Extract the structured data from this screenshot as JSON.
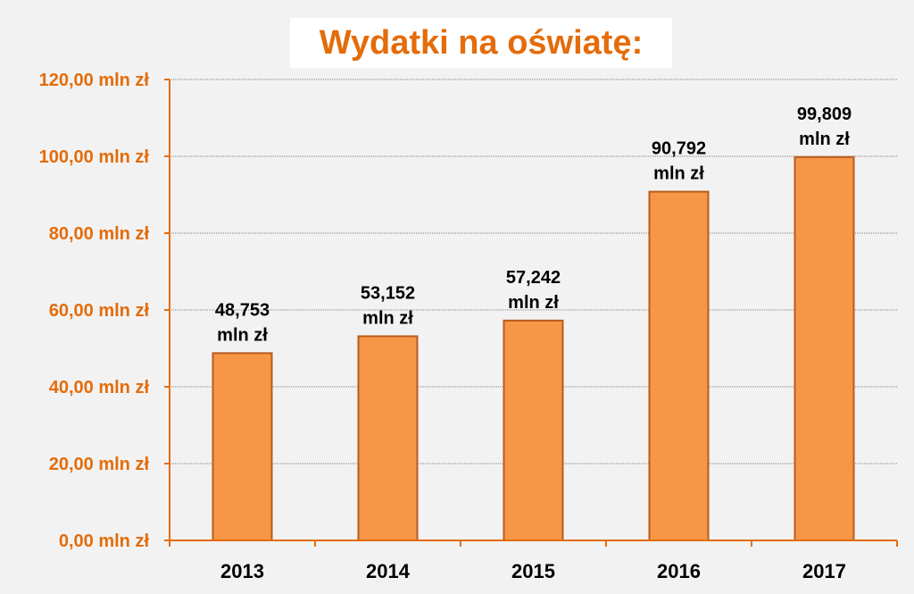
{
  "chart_data": {
    "type": "bar",
    "title": "Wydatki na oświatę:",
    "categories": [
      "2013",
      "2014",
      "2015",
      "2016",
      "2017"
    ],
    "values": [
      48.753,
      53.152,
      57.242,
      90.792,
      99.809
    ],
    "data_labels": [
      [
        "48,753",
        "mln zł"
      ],
      [
        "53,152",
        "mln zł"
      ],
      [
        "57,242",
        "mln zł"
      ],
      [
        "90,792",
        "mln zł"
      ],
      [
        "99,809",
        "mln zł"
      ]
    ],
    "y_ticks": [
      0,
      20,
      40,
      60,
      80,
      100,
      120
    ],
    "y_tick_labels": [
      "0,00 mln zł",
      "20,00 mln zł",
      "40,00 mln zł",
      "60,00 mln zł",
      "80,00 mln zł",
      "100,00 mln zł",
      "120,00 mln zł"
    ],
    "ylim": [
      0,
      120
    ],
    "xlabel": "",
    "ylabel": "",
    "grid": true,
    "legend": "none",
    "colors": {
      "bar_fill": "#f79646",
      "bar_stroke": "#b85c1e",
      "axis": "#e46c0a",
      "tick_text": "#e46c0a",
      "title_text": "#e46c0a",
      "gridline": "#808080"
    }
  }
}
